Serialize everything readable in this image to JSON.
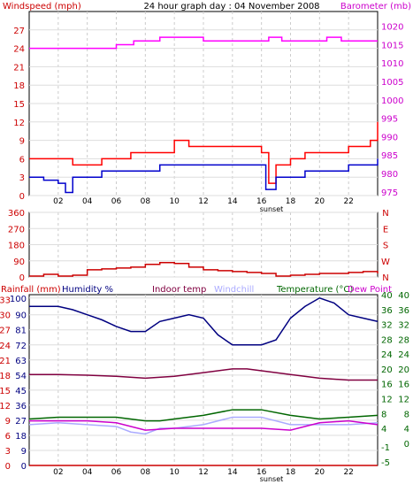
{
  "chart_data": [
    {
      "type": "line",
      "title": "24 hour graph day : 04 November 2008",
      "left_axis": {
        "label": "Windspeed (mph)",
        "ylim": [
          0,
          30
        ],
        "ticks": [
          0,
          3,
          6,
          9,
          12,
          15,
          18,
          21,
          24,
          27
        ],
        "color": "#cc0000"
      },
      "right_axis": {
        "label": "Barometer (mb)",
        "ylim": [
          974,
          1024
        ],
        "ticks": [
          975,
          980,
          985,
          990,
          995,
          1000,
          1005,
          1010,
          1015,
          1020
        ],
        "color": "#cc00cc"
      },
      "x_ticks": [
        "02",
        "04",
        "06",
        "08",
        "10",
        "12",
        "14",
        "16",
        "18",
        "20",
        "22"
      ],
      "annotation": "sunset",
      "grid": true,
      "series": [
        {
          "axis": "right",
          "color": "#ff00ff",
          "x": [
            0,
            5.9,
            6,
            7.1,
            7.2,
            8.8,
            9,
            11.9,
            12,
            16.4,
            16.5,
            17.2,
            17.4,
            19,
            20.5,
            21.5,
            23.5,
            24
          ],
          "y": [
            1014,
            1014,
            1015,
            1015,
            1016,
            1016,
            1017,
            1017,
            1016,
            1016,
            1017,
            1017,
            1016,
            1016,
            1017,
            1016,
            1016,
            1016
          ]
        },
        {
          "axis": "left",
          "color": "#ff0000",
          "x": [
            0,
            1,
            2,
            3,
            4,
            5,
            6,
            7,
            8,
            9,
            10,
            11,
            12,
            13,
            14,
            15,
            16,
            16.5,
            17,
            18,
            19,
            20,
            21,
            22,
            23,
            23.5,
            24
          ],
          "y": [
            6,
            6,
            6,
            5,
            5,
            6,
            6,
            7,
            7,
            7,
            9,
            8,
            8,
            8,
            8,
            8,
            7,
            2,
            5,
            6,
            7,
            7,
            7,
            8,
            8,
            9,
            12
          ]
        },
        {
          "axis": "left",
          "color": "#0000cc",
          "x": [
            0,
            1,
            2,
            2.5,
            3,
            4,
            5,
            6,
            7,
            8,
            9,
            10,
            11,
            12,
            13,
            14,
            15,
            16,
            16.3,
            17,
            18,
            19,
            20,
            21,
            22,
            23,
            24
          ],
          "y": [
            3,
            2.5,
            2,
            0.5,
            3,
            3,
            4,
            4,
            4,
            4,
            5,
            5,
            5,
            5,
            5,
            5,
            5,
            5,
            1,
            3,
            3,
            4,
            4,
            4,
            5,
            5,
            6
          ]
        }
      ]
    },
    {
      "type": "scatter",
      "title": "",
      "left_axis": {
        "ylim": [
          0,
          360
        ],
        "ticks": [
          0,
          90,
          180,
          270,
          360
        ],
        "color": "#cc0000"
      },
      "right_axis": {
        "labels": [
          "N",
          "E",
          "S",
          "W",
          "N"
        ],
        "color": "#cc0000"
      },
      "x_ticks": [],
      "grid": true,
      "series": [
        {
          "color": "#cc0000",
          "x": [
            0,
            1,
            2,
            3,
            4,
            5,
            6,
            7,
            8,
            9,
            10,
            11,
            12,
            13,
            14,
            15,
            16,
            17,
            18,
            19,
            20,
            21,
            22,
            23,
            24
          ],
          "y": [
            5,
            15,
            5,
            10,
            40,
            45,
            50,
            55,
            70,
            80,
            75,
            55,
            40,
            35,
            30,
            25,
            20,
            5,
            10,
            15,
            20,
            20,
            25,
            30,
            20
          ]
        }
      ]
    },
    {
      "type": "line",
      "title": "",
      "legend": [
        {
          "label": "Rainfall (mm)",
          "color": "#cc0000"
        },
        {
          "label": "Humidity %",
          "color": "#000080"
        },
        {
          "label": "Indoor temp",
          "color": "#800040"
        },
        {
          "label": "Windchill",
          "color": "#aaaaff"
        },
        {
          "label": "Temperature (°C)",
          "color": "#006600"
        },
        {
          "label": "Dew Point",
          "color": "#cc00cc"
        }
      ],
      "left_axis_1": {
        "ylim": [
          0,
          102
        ],
        "ticks": [
          0,
          9,
          18,
          27,
          36,
          45,
          54,
          63,
          72,
          81,
          90,
          100
        ],
        "color": "#000080"
      },
      "left_axis_2": {
        "ylim": [
          0,
          34
        ],
        "ticks": [
          0,
          3,
          6,
          9,
          12,
          15,
          18,
          21,
          24,
          27,
          30,
          33
        ],
        "color": "#cc0000"
      },
      "right_axis_1": {
        "ylim": [
          -6,
          40
        ],
        "ticks": [
          -5,
          -1,
          4,
          8,
          12,
          16,
          20,
          24,
          28,
          32,
          36,
          40
        ],
        "color": "#006600"
      },
      "right_axis_2": {
        "ylim": [
          -6,
          40
        ],
        "ticks": [
          0,
          4,
          8,
          12,
          16,
          20,
          24,
          28,
          32,
          36,
          40
        ],
        "color": "#006600"
      },
      "x_ticks": [
        "02",
        "04",
        "06",
        "08",
        "10",
        "12",
        "14",
        "16",
        "18",
        "20",
        "22"
      ],
      "annotation": "sunset",
      "grid": true,
      "series": [
        {
          "name": "Humidity %",
          "axis": "left_1",
          "color": "#000080",
          "x": [
            0,
            1,
            2,
            3,
            4,
            5,
            6,
            7,
            8,
            9,
            10,
            11,
            12,
            13,
            14,
            15,
            16,
            17,
            18,
            19,
            20,
            21,
            22,
            23,
            24
          ],
          "y": [
            95,
            95,
            95,
            93,
            90,
            87,
            83,
            80,
            80,
            86,
            88,
            90,
            88,
            78,
            72,
            72,
            72,
            75,
            88,
            95,
            100,
            97,
            90,
            88,
            86
          ]
        },
        {
          "name": "Indoor temp",
          "axis": "right_1",
          "color": "#800040",
          "x": [
            0,
            2,
            4,
            6,
            8,
            10,
            12,
            14,
            15,
            16,
            18,
            20,
            22,
            24
          ],
          "y": [
            18.5,
            18.5,
            18.3,
            18,
            17.5,
            18,
            19,
            20,
            20,
            19.5,
            18.5,
            17.5,
            17,
            17
          ]
        },
        {
          "name": "Temperature (°C)",
          "axis": "right_1",
          "color": "#006600",
          "x": [
            0,
            2,
            4,
            6,
            8,
            9,
            10,
            12,
            14,
            15,
            16,
            18,
            20,
            22,
            24
          ],
          "y": [
            6.5,
            7,
            7,
            7,
            6,
            6,
            6.5,
            7.5,
            9,
            9,
            9,
            7.5,
            6.5,
            7,
            7.5
          ]
        },
        {
          "name": "Windchill",
          "axis": "right_1",
          "color": "#aaaaff",
          "x": [
            0,
            2,
            4,
            6,
            7,
            8,
            9,
            10,
            12,
            14,
            16,
            18,
            20,
            22,
            24
          ],
          "y": [
            5,
            5.5,
            5,
            4.5,
            3,
            2.5,
            4,
            4,
            5,
            7,
            7,
            5,
            5,
            5,
            5.5
          ]
        },
        {
          "name": "Dew Point",
          "axis": "right_1",
          "color": "#cc00cc",
          "x": [
            0,
            2,
            4,
            6,
            8,
            10,
            12,
            14,
            16,
            18,
            20,
            22,
            24
          ],
          "y": [
            6,
            6,
            6,
            5.5,
            3.5,
            4,
            4,
            4,
            4,
            3.5,
            5.5,
            6,
            5
          ]
        },
        {
          "name": "Rainfall (mm)",
          "axis": "left_2",
          "color": "#cc0000",
          "x": [
            0,
            24
          ],
          "y": [
            0,
            0
          ]
        }
      ]
    }
  ]
}
